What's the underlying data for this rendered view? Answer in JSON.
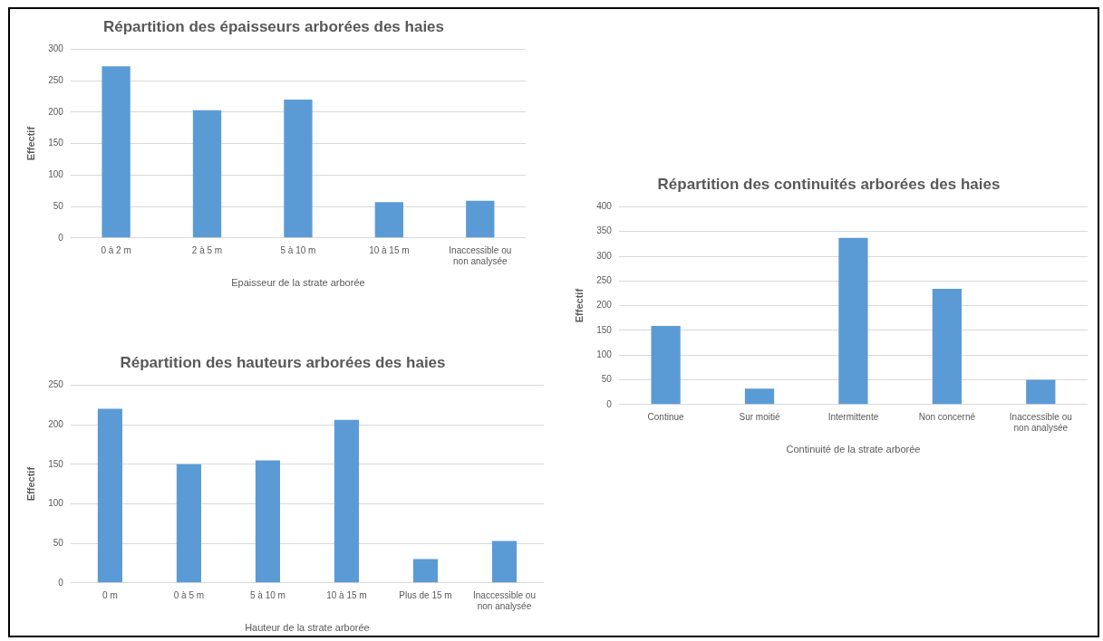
{
  "chart_data": [
    {
      "type": "bar",
      "title": "Répartition des épaisseurs arborées des haies",
      "xlabel": "Epaisseur de la strate arborée",
      "ylabel": "Effectif",
      "categories": [
        "0 à 2 m",
        "2 à 5 m",
        "5 à 10 m",
        "10 à 15 m",
        "Inaccessible ou non analysée"
      ],
      "values": [
        273,
        203,
        220,
        57,
        59
      ],
      "color": "#5b9bd5",
      "ylim": [
        0,
        300
      ],
      "yticks": [
        0,
        50,
        100,
        150,
        200,
        250,
        300
      ],
      "grid": "y"
    },
    {
      "type": "bar",
      "title": "Répartition des continuités arborées des haies",
      "xlabel": "Continuité de la strate arborée",
      "ylabel": "Effectif",
      "categories": [
        "Continue",
        "Sur moitié",
        "Intermittente",
        "Non concerné",
        "Inaccessible ou non analysée"
      ],
      "values": [
        159,
        32,
        337,
        234,
        50
      ],
      "color": "#5b9bd5",
      "ylim": [
        0,
        400
      ],
      "yticks": [
        0,
        50,
        100,
        150,
        200,
        250,
        300,
        350,
        400
      ],
      "grid": "y"
    },
    {
      "type": "bar",
      "title": "Répartition des hauteurs arborées des haies",
      "xlabel": "Hauteur de la strate arborée",
      "ylabel": "Effectif",
      "categories": [
        "0 m",
        "0 à 5 m",
        "5 à 10 m",
        "10 à 15 m",
        "Plus de 15 m",
        "Inaccessible ou non analysée"
      ],
      "values": [
        220,
        150,
        155,
        206,
        30,
        53
      ],
      "color": "#5b9bd5",
      "ylim": [
        0,
        250
      ],
      "yticks": [
        0,
        50,
        100,
        150,
        200,
        250
      ],
      "grid": "y"
    }
  ]
}
